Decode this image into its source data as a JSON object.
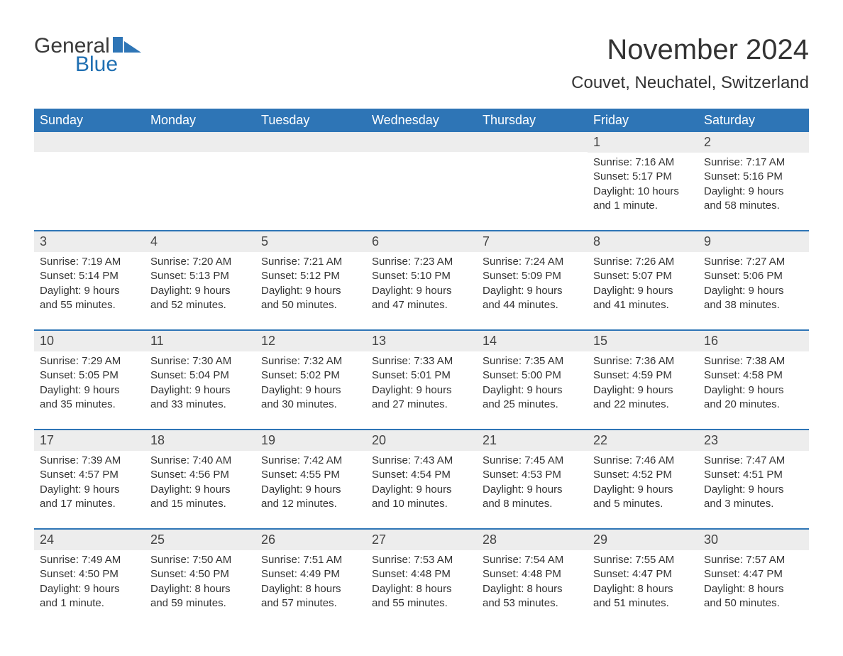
{
  "brand": {
    "general": "General",
    "blue": "Blue",
    "arrow_color": "#2e75b6"
  },
  "title": "November 2024",
  "location": "Couvet, Neuchatel, Switzerland",
  "colors": {
    "header_bg": "#2e75b6",
    "header_fg": "#ffffff",
    "band_bg": "#ededed",
    "rule": "#2e75b6",
    "text": "#333333",
    "page_bg": "#ffffff"
  },
  "fonts": {
    "title_pt": 40,
    "location_pt": 24,
    "dayhead_pt": 18,
    "body_pt": 15
  },
  "day_headers": [
    "Sunday",
    "Monday",
    "Tuesday",
    "Wednesday",
    "Thursday",
    "Friday",
    "Saturday"
  ],
  "weeks": [
    [
      null,
      null,
      null,
      null,
      null,
      {
        "n": "1",
        "sr": "Sunrise: 7:16 AM",
        "ss": "Sunset: 5:17 PM",
        "dl1": "Daylight: 10 hours",
        "dl2": "and 1 minute."
      },
      {
        "n": "2",
        "sr": "Sunrise: 7:17 AM",
        "ss": "Sunset: 5:16 PM",
        "dl1": "Daylight: 9 hours",
        "dl2": "and 58 minutes."
      }
    ],
    [
      {
        "n": "3",
        "sr": "Sunrise: 7:19 AM",
        "ss": "Sunset: 5:14 PM",
        "dl1": "Daylight: 9 hours",
        "dl2": "and 55 minutes."
      },
      {
        "n": "4",
        "sr": "Sunrise: 7:20 AM",
        "ss": "Sunset: 5:13 PM",
        "dl1": "Daylight: 9 hours",
        "dl2": "and 52 minutes."
      },
      {
        "n": "5",
        "sr": "Sunrise: 7:21 AM",
        "ss": "Sunset: 5:12 PM",
        "dl1": "Daylight: 9 hours",
        "dl2": "and 50 minutes."
      },
      {
        "n": "6",
        "sr": "Sunrise: 7:23 AM",
        "ss": "Sunset: 5:10 PM",
        "dl1": "Daylight: 9 hours",
        "dl2": "and 47 minutes."
      },
      {
        "n": "7",
        "sr": "Sunrise: 7:24 AM",
        "ss": "Sunset: 5:09 PM",
        "dl1": "Daylight: 9 hours",
        "dl2": "and 44 minutes."
      },
      {
        "n": "8",
        "sr": "Sunrise: 7:26 AM",
        "ss": "Sunset: 5:07 PM",
        "dl1": "Daylight: 9 hours",
        "dl2": "and 41 minutes."
      },
      {
        "n": "9",
        "sr": "Sunrise: 7:27 AM",
        "ss": "Sunset: 5:06 PM",
        "dl1": "Daylight: 9 hours",
        "dl2": "and 38 minutes."
      }
    ],
    [
      {
        "n": "10",
        "sr": "Sunrise: 7:29 AM",
        "ss": "Sunset: 5:05 PM",
        "dl1": "Daylight: 9 hours",
        "dl2": "and 35 minutes."
      },
      {
        "n": "11",
        "sr": "Sunrise: 7:30 AM",
        "ss": "Sunset: 5:04 PM",
        "dl1": "Daylight: 9 hours",
        "dl2": "and 33 minutes."
      },
      {
        "n": "12",
        "sr": "Sunrise: 7:32 AM",
        "ss": "Sunset: 5:02 PM",
        "dl1": "Daylight: 9 hours",
        "dl2": "and 30 minutes."
      },
      {
        "n": "13",
        "sr": "Sunrise: 7:33 AM",
        "ss": "Sunset: 5:01 PM",
        "dl1": "Daylight: 9 hours",
        "dl2": "and 27 minutes."
      },
      {
        "n": "14",
        "sr": "Sunrise: 7:35 AM",
        "ss": "Sunset: 5:00 PM",
        "dl1": "Daylight: 9 hours",
        "dl2": "and 25 minutes."
      },
      {
        "n": "15",
        "sr": "Sunrise: 7:36 AM",
        "ss": "Sunset: 4:59 PM",
        "dl1": "Daylight: 9 hours",
        "dl2": "and 22 minutes."
      },
      {
        "n": "16",
        "sr": "Sunrise: 7:38 AM",
        "ss": "Sunset: 4:58 PM",
        "dl1": "Daylight: 9 hours",
        "dl2": "and 20 minutes."
      }
    ],
    [
      {
        "n": "17",
        "sr": "Sunrise: 7:39 AM",
        "ss": "Sunset: 4:57 PM",
        "dl1": "Daylight: 9 hours",
        "dl2": "and 17 minutes."
      },
      {
        "n": "18",
        "sr": "Sunrise: 7:40 AM",
        "ss": "Sunset: 4:56 PM",
        "dl1": "Daylight: 9 hours",
        "dl2": "and 15 minutes."
      },
      {
        "n": "19",
        "sr": "Sunrise: 7:42 AM",
        "ss": "Sunset: 4:55 PM",
        "dl1": "Daylight: 9 hours",
        "dl2": "and 12 minutes."
      },
      {
        "n": "20",
        "sr": "Sunrise: 7:43 AM",
        "ss": "Sunset: 4:54 PM",
        "dl1": "Daylight: 9 hours",
        "dl2": "and 10 minutes."
      },
      {
        "n": "21",
        "sr": "Sunrise: 7:45 AM",
        "ss": "Sunset: 4:53 PM",
        "dl1": "Daylight: 9 hours",
        "dl2": "and 8 minutes."
      },
      {
        "n": "22",
        "sr": "Sunrise: 7:46 AM",
        "ss": "Sunset: 4:52 PM",
        "dl1": "Daylight: 9 hours",
        "dl2": "and 5 minutes."
      },
      {
        "n": "23",
        "sr": "Sunrise: 7:47 AM",
        "ss": "Sunset: 4:51 PM",
        "dl1": "Daylight: 9 hours",
        "dl2": "and 3 minutes."
      }
    ],
    [
      {
        "n": "24",
        "sr": "Sunrise: 7:49 AM",
        "ss": "Sunset: 4:50 PM",
        "dl1": "Daylight: 9 hours",
        "dl2": "and 1 minute."
      },
      {
        "n": "25",
        "sr": "Sunrise: 7:50 AM",
        "ss": "Sunset: 4:50 PM",
        "dl1": "Daylight: 8 hours",
        "dl2": "and 59 minutes."
      },
      {
        "n": "26",
        "sr": "Sunrise: 7:51 AM",
        "ss": "Sunset: 4:49 PM",
        "dl1": "Daylight: 8 hours",
        "dl2": "and 57 minutes."
      },
      {
        "n": "27",
        "sr": "Sunrise: 7:53 AM",
        "ss": "Sunset: 4:48 PM",
        "dl1": "Daylight: 8 hours",
        "dl2": "and 55 minutes."
      },
      {
        "n": "28",
        "sr": "Sunrise: 7:54 AM",
        "ss": "Sunset: 4:48 PM",
        "dl1": "Daylight: 8 hours",
        "dl2": "and 53 minutes."
      },
      {
        "n": "29",
        "sr": "Sunrise: 7:55 AM",
        "ss": "Sunset: 4:47 PM",
        "dl1": "Daylight: 8 hours",
        "dl2": "and 51 minutes."
      },
      {
        "n": "30",
        "sr": "Sunrise: 7:57 AM",
        "ss": "Sunset: 4:47 PM",
        "dl1": "Daylight: 8 hours",
        "dl2": "and 50 minutes."
      }
    ]
  ]
}
